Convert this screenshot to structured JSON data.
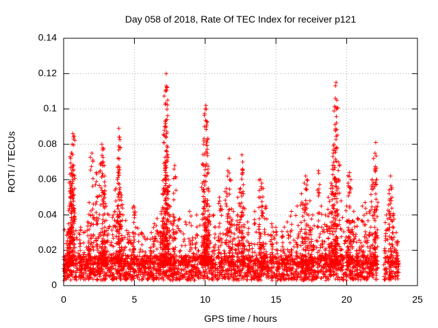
{
  "chart_data": {
    "type": "scatter",
    "title": "Day 058 of 2018, Rate Of TEC Index for receiver p121",
    "xlabel": "GPS time / hours",
    "ylabel": "ROTI / TECUs",
    "xlim": [
      0,
      25
    ],
    "ylim": [
      0,
      0.14
    ],
    "xticks": [
      0,
      5,
      10,
      15,
      20,
      25
    ],
    "yticks": [
      0,
      0.02,
      0.04,
      0.06,
      0.08,
      0.1,
      0.12,
      0.14
    ],
    "xtick_labels": [
      "0",
      "5",
      "10",
      "15",
      "20",
      "25"
    ],
    "ytick_labels": [
      "0",
      "0.02",
      "0.04",
      "0.06",
      "0.08",
      "0.1",
      "0.12",
      "0.14"
    ],
    "grid": true,
    "marker": "plus",
    "color": "#ff0000",
    "x_data_range": [
      0,
      23.7
    ],
    "baseline_typical": 0.01,
    "series": [
      {
        "name": "ROTI",
        "points": [
          [
            0.05,
            0.008
          ],
          [
            0.1,
            0.007
          ],
          [
            0.2,
            0.012
          ],
          [
            0.25,
            0.02
          ],
          [
            0.3,
            0.03
          ],
          [
            0.35,
            0.035
          ],
          [
            0.4,
            0.045
          ],
          [
            0.45,
            0.063
          ],
          [
            0.5,
            0.072
          ],
          [
            0.55,
            0.075
          ],
          [
            0.6,
            0.08
          ],
          [
            0.65,
            0.086
          ],
          [
            0.7,
            0.084
          ],
          [
            0.55,
            0.056
          ],
          [
            0.6,
            0.062
          ],
          [
            0.5,
            0.046
          ],
          [
            0.7,
            0.044
          ],
          [
            1.2,
            0.033
          ],
          [
            1.4,
            0.03
          ],
          [
            1.7,
            0.036
          ],
          [
            1.8,
            0.047
          ],
          [
            2.0,
            0.075
          ],
          [
            2.05,
            0.04
          ],
          [
            2.3,
            0.064
          ],
          [
            2.4,
            0.05
          ],
          [
            2.6,
            0.065
          ],
          [
            2.7,
            0.08
          ],
          [
            2.75,
            0.078
          ],
          [
            2.8,
            0.07
          ],
          [
            2.85,
            0.068
          ],
          [
            2.9,
            0.05
          ],
          [
            3.0,
            0.045
          ],
          [
            3.2,
            0.04
          ],
          [
            3.5,
            0.04
          ],
          [
            3.7,
            0.055
          ],
          [
            3.8,
            0.06
          ],
          [
            3.85,
            0.064
          ],
          [
            3.9,
            0.089
          ],
          [
            3.95,
            0.084
          ],
          [
            4.0,
            0.078
          ],
          [
            4.05,
            0.05
          ],
          [
            4.2,
            0.04
          ],
          [
            4.6,
            0.03
          ],
          [
            4.9,
            0.02
          ],
          [
            4.95,
            0.045
          ],
          [
            5.0,
            0.044
          ],
          [
            5.5,
            0.03
          ],
          [
            5.8,
            0.026
          ],
          [
            6.2,
            0.03
          ],
          [
            6.4,
            0.035
          ],
          [
            6.6,
            0.038
          ],
          [
            6.8,
            0.03
          ],
          [
            6.9,
            0.042
          ],
          [
            7.0,
            0.052
          ],
          [
            7.05,
            0.055
          ],
          [
            7.1,
            0.085
          ],
          [
            7.15,
            0.09
          ],
          [
            7.2,
            0.11
          ],
          [
            7.25,
            0.12
          ],
          [
            7.25,
            0.113
          ],
          [
            7.3,
            0.094
          ],
          [
            7.3,
            0.087
          ],
          [
            7.4,
            0.06
          ],
          [
            7.5,
            0.045
          ],
          [
            7.8,
            0.066
          ],
          [
            7.85,
            0.068
          ],
          [
            8.2,
            0.038
          ],
          [
            8.6,
            0.036
          ],
          [
            8.9,
            0.042
          ],
          [
            9.4,
            0.04
          ],
          [
            9.8,
            0.058
          ],
          [
            9.9,
            0.08
          ],
          [
            9.95,
            0.09
          ],
          [
            10.0,
            0.1
          ],
          [
            10.05,
            0.102
          ],
          [
            10.1,
            0.093
          ],
          [
            10.15,
            0.075
          ],
          [
            10.2,
            0.066
          ],
          [
            10.3,
            0.045
          ],
          [
            10.6,
            0.04
          ],
          [
            11.0,
            0.05
          ],
          [
            11.1,
            0.045
          ],
          [
            11.5,
            0.055
          ],
          [
            11.6,
            0.065
          ],
          [
            11.7,
            0.072
          ],
          [
            11.8,
            0.06
          ],
          [
            12.0,
            0.042
          ],
          [
            12.3,
            0.05
          ],
          [
            12.5,
            0.055
          ],
          [
            12.6,
            0.074
          ],
          [
            12.65,
            0.07
          ],
          [
            12.7,
            0.052
          ],
          [
            13.0,
            0.036
          ],
          [
            13.5,
            0.042
          ],
          [
            13.8,
            0.05
          ],
          [
            13.9,
            0.06
          ],
          [
            14.0,
            0.058
          ],
          [
            14.1,
            0.055
          ],
          [
            14.3,
            0.045
          ],
          [
            14.7,
            0.035
          ],
          [
            15.0,
            0.03
          ],
          [
            15.5,
            0.028
          ],
          [
            15.8,
            0.036
          ],
          [
            16.1,
            0.042
          ],
          [
            16.5,
            0.045
          ],
          [
            16.8,
            0.052
          ],
          [
            17.0,
            0.058
          ],
          [
            17.1,
            0.062
          ],
          [
            17.2,
            0.06
          ],
          [
            17.4,
            0.048
          ],
          [
            17.6,
            0.04
          ],
          [
            18.0,
            0.065
          ],
          [
            18.2,
            0.045
          ],
          [
            18.5,
            0.04
          ],
          [
            18.7,
            0.05
          ],
          [
            18.9,
            0.058
          ],
          [
            19.0,
            0.068
          ],
          [
            19.05,
            0.075
          ],
          [
            19.1,
            0.08
          ],
          [
            19.2,
            0.106
          ],
          [
            19.25,
            0.115
          ],
          [
            19.3,
            0.105
          ],
          [
            19.4,
            0.07
          ],
          [
            19.6,
            0.048
          ],
          [
            20.0,
            0.045
          ],
          [
            20.1,
            0.058
          ],
          [
            20.2,
            0.064
          ],
          [
            20.3,
            0.06
          ],
          [
            20.5,
            0.042
          ],
          [
            20.8,
            0.038
          ],
          [
            21.1,
            0.045
          ],
          [
            21.3,
            0.047
          ],
          [
            21.6,
            0.042
          ],
          [
            21.8,
            0.06
          ],
          [
            21.9,
            0.072
          ],
          [
            22.0,
            0.075
          ],
          [
            22.05,
            0.081
          ],
          [
            22.1,
            0.06
          ],
          [
            22.8,
            0.04
          ],
          [
            23.0,
            0.052
          ],
          [
            23.1,
            0.062
          ],
          [
            23.2,
            0.05
          ],
          [
            23.3,
            0.04
          ],
          [
            23.5,
            0.03
          ],
          [
            23.6,
            0.025
          ]
        ]
      }
    ]
  }
}
